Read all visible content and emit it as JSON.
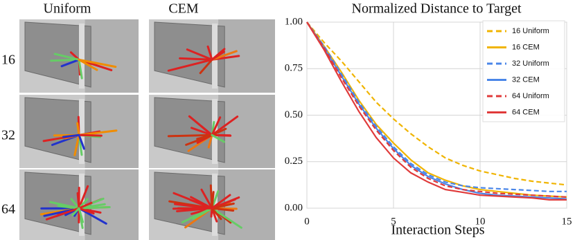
{
  "figure": {
    "columns": [
      "Uniform",
      "CEM"
    ],
    "rows": [
      "16",
      "32",
      "64"
    ]
  },
  "chart_data": {
    "type": "line",
    "title": "Normalized Distance to Target",
    "x_label": "Interaction Steps",
    "x": [
      0,
      1,
      2,
      3,
      4,
      5,
      6,
      7,
      8,
      9,
      10,
      11,
      12,
      13,
      14,
      15
    ],
    "series": [
      {
        "name": "16 Uniform",
        "color": "#f0b400",
        "dashed": true,
        "values": [
          1.0,
          0.89,
          0.79,
          0.68,
          0.57,
          0.48,
          0.4,
          0.33,
          0.27,
          0.23,
          0.2,
          0.18,
          0.16,
          0.145,
          0.135,
          0.125
        ]
      },
      {
        "name": "16 CEM",
        "color": "#f0b400",
        "dashed": false,
        "values": [
          1.0,
          0.87,
          0.73,
          0.58,
          0.45,
          0.35,
          0.26,
          0.19,
          0.15,
          0.12,
          0.1,
          0.09,
          0.08,
          0.07,
          0.065,
          0.06
        ]
      },
      {
        "name": "32 Uniform",
        "color": "#4a86e8",
        "dashed": true,
        "values": [
          1.0,
          0.87,
          0.72,
          0.57,
          0.44,
          0.33,
          0.24,
          0.18,
          0.14,
          0.12,
          0.11,
          0.105,
          0.1,
          0.095,
          0.09,
          0.09
        ]
      },
      {
        "name": "32 CEM",
        "color": "#4a86e8",
        "dashed": false,
        "values": [
          1.0,
          0.86,
          0.71,
          0.56,
          0.43,
          0.32,
          0.23,
          0.17,
          0.13,
          0.1,
          0.08,
          0.07,
          0.065,
          0.06,
          0.055,
          0.05
        ]
      },
      {
        "name": "64 Uniform",
        "color": "#e03a3a",
        "dashed": true,
        "values": [
          1.0,
          0.86,
          0.7,
          0.55,
          0.42,
          0.31,
          0.22,
          0.16,
          0.12,
          0.1,
          0.09,
          0.08,
          0.075,
          0.07,
          0.065,
          0.06
        ]
      },
      {
        "name": "64 CEM",
        "color": "#e03a3a",
        "dashed": false,
        "values": [
          1.0,
          0.85,
          0.68,
          0.52,
          0.38,
          0.27,
          0.19,
          0.14,
          0.1,
          0.085,
          0.07,
          0.065,
          0.06,
          0.055,
          0.045,
          0.045
        ]
      }
    ],
    "xlim": [
      0,
      15
    ],
    "xticks": [
      0,
      5,
      10,
      15
    ],
    "ylim": [
      0,
      1
    ],
    "yticks": [
      {
        "value": 0,
        "label": "0.00"
      },
      {
        "value": 0.25,
        "label": "0.25"
      },
      {
        "value": 0.5,
        "label": "0.50"
      },
      {
        "value": 0.75,
        "label": "0.75"
      },
      {
        "value": 1,
        "label": "1.00"
      }
    ],
    "grid": true,
    "legend": "upper right"
  }
}
